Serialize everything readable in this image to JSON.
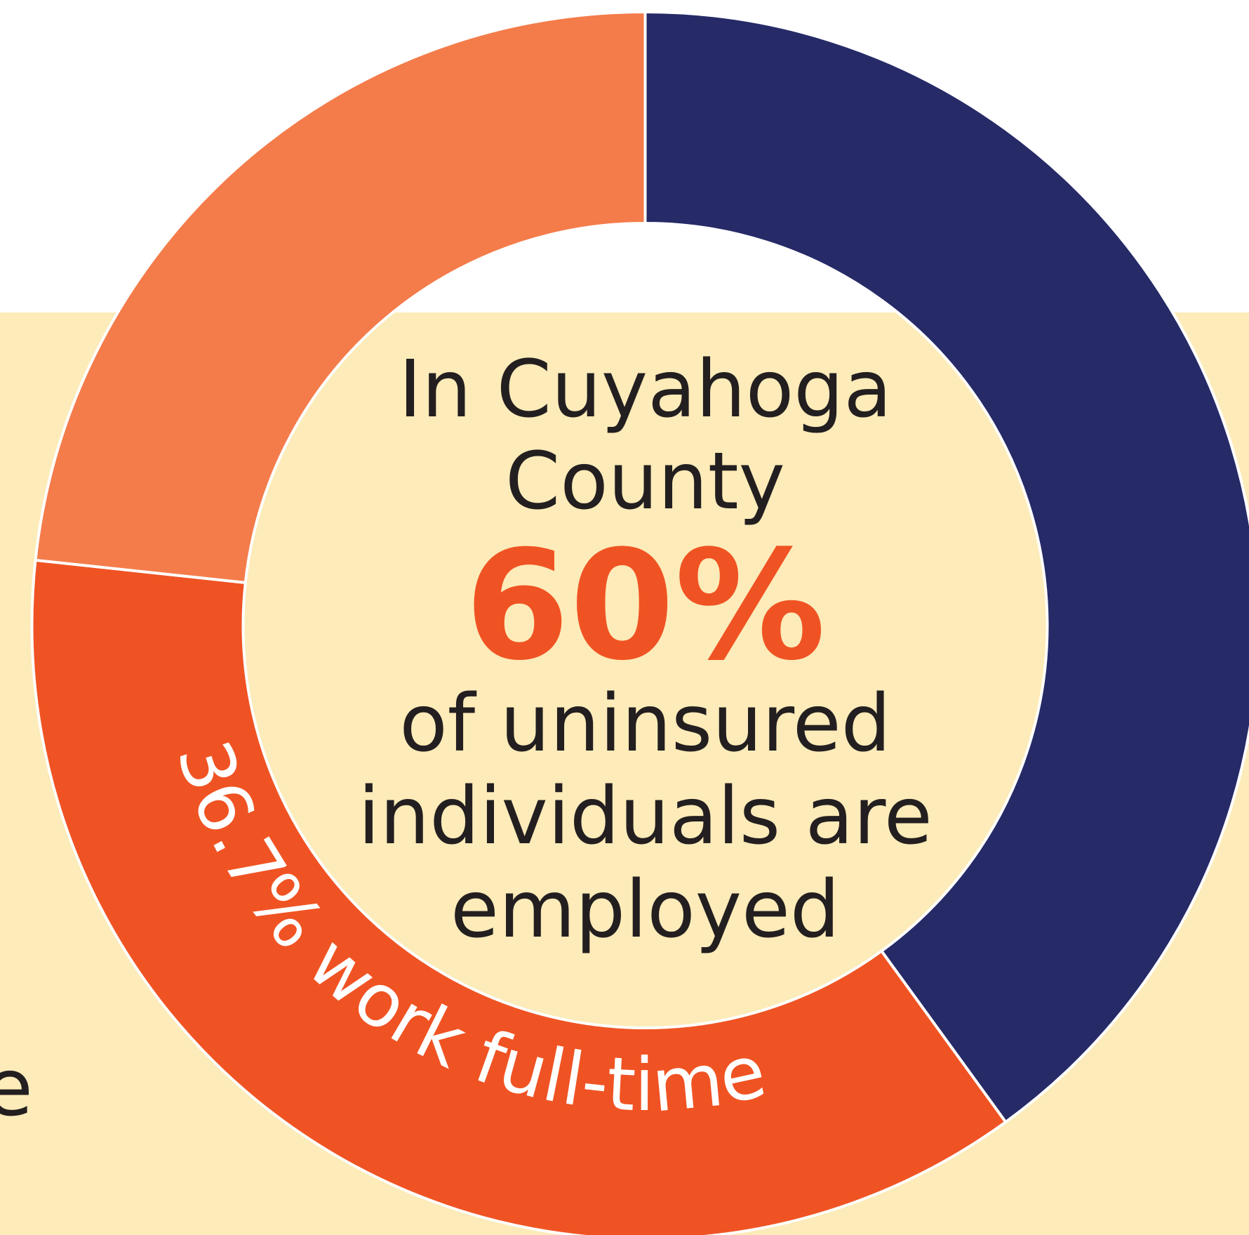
{
  "chart_data": {
    "type": "donut",
    "values": [
      40,
      36.7,
      23.3
    ],
    "colors": [
      "#262a67",
      "#f05323",
      "#f47c4a"
    ],
    "value_labels": [
      null,
      "36.7% work full-time",
      null
    ],
    "center_text": [
      "In Cuyahoga",
      "County",
      "60%",
      "of uninsured",
      "individuals are",
      "employed"
    ],
    "left_text_fragment": "e"
  }
}
